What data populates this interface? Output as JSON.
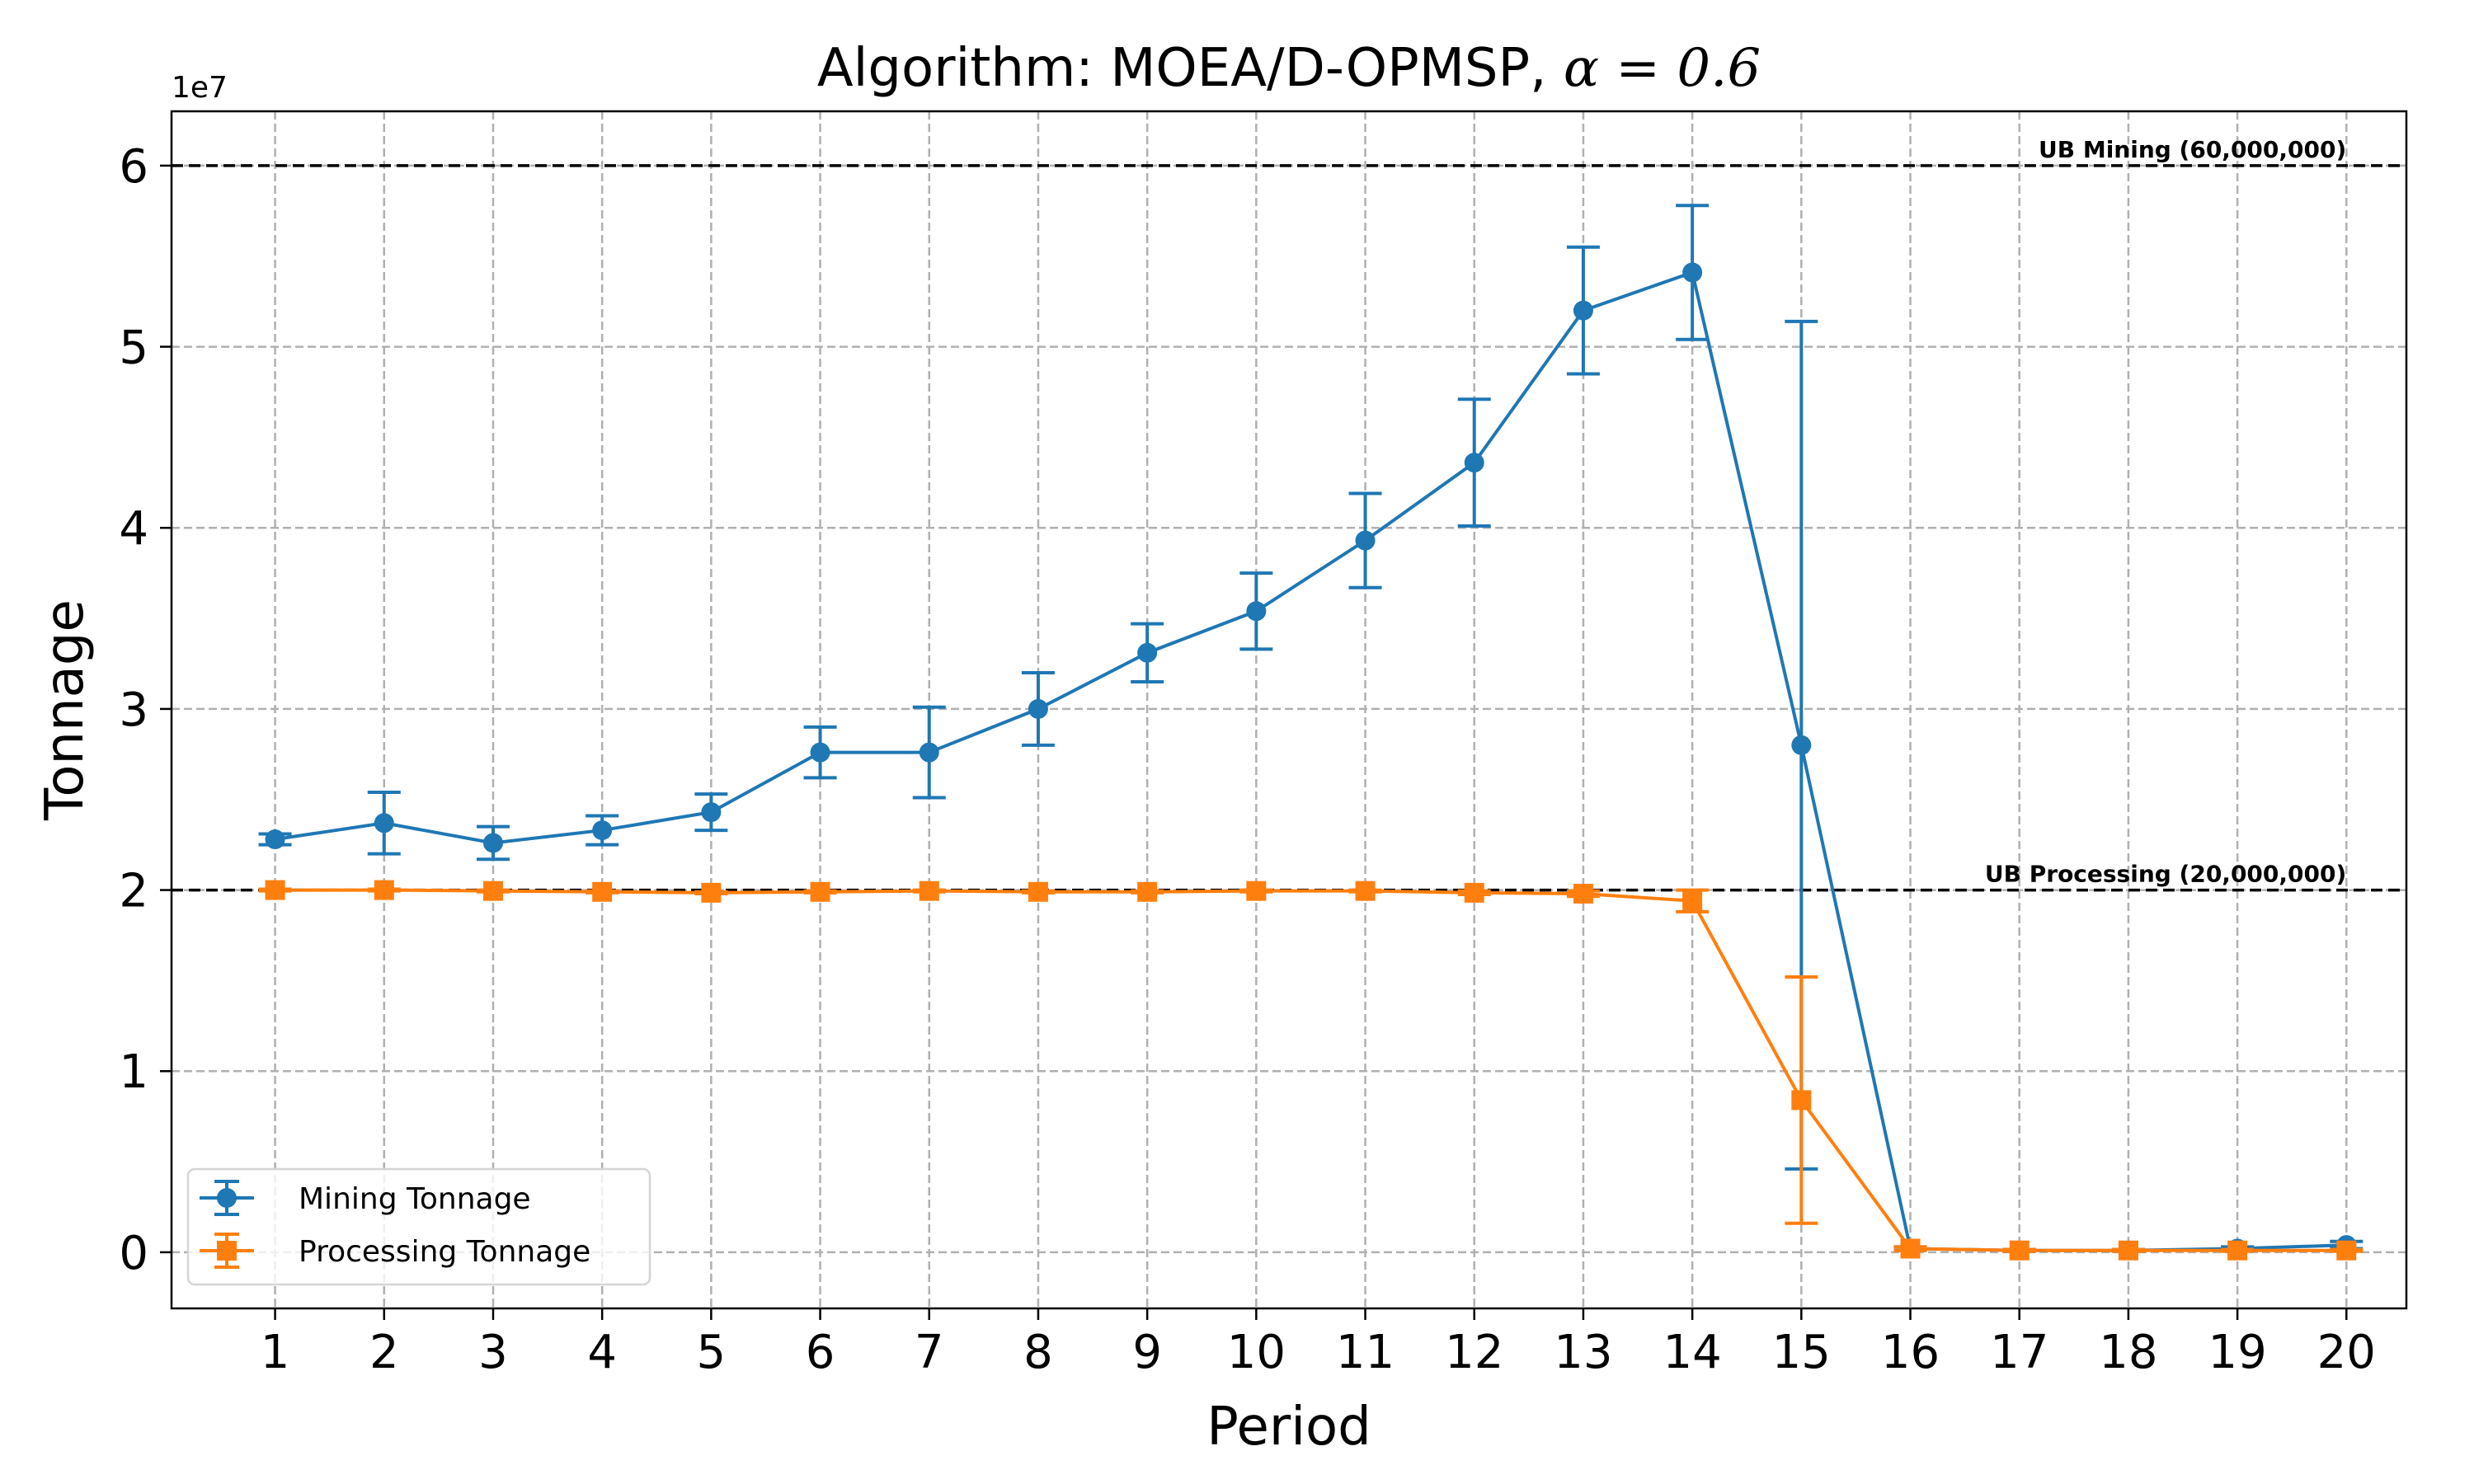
{
  "chart_data": {
    "type": "line",
    "title": "Algorithm: MOEA/D-OPMSP, α = 0.6",
    "title_prefix": "Algorithm: MOEA/D-OPMSP, ",
    "title_math": "α = 0.6",
    "xlabel": "Period",
    "ylabel": "Tonnage",
    "y_offset_label": "1e7",
    "x": [
      1,
      2,
      3,
      4,
      5,
      6,
      7,
      8,
      9,
      10,
      11,
      12,
      13,
      14,
      15,
      16,
      17,
      18,
      19,
      20
    ],
    "xlim": [
      0.05,
      20.55
    ],
    "ylim": [
      -3100000,
      63000000
    ],
    "yticks": [
      0,
      10000000,
      20000000,
      30000000,
      40000000,
      50000000,
      60000000
    ],
    "ytick_labels": [
      "0",
      "1",
      "2",
      "3",
      "4",
      "5",
      "6"
    ],
    "grid": true,
    "legend_position": "lower-left",
    "series": [
      {
        "name": "Mining Tonnage",
        "color": "#1f77b4",
        "marker": "circle",
        "values": [
          22800000,
          23700000,
          22600000,
          23300000,
          24300000,
          27600000,
          27600000,
          30000000,
          33100000,
          35400000,
          39300000,
          43600000,
          52000000,
          54100000,
          28000000,
          200000,
          100000,
          100000,
          200000,
          400000
        ],
        "errors": [
          300000,
          1700000,
          900000,
          800000,
          1000000,
          1400000,
          2500000,
          2000000,
          1600000,
          2100000,
          2600000,
          3500000,
          3500000,
          3700000,
          23400000,
          100000,
          50000,
          50000,
          100000,
          200000
        ]
      },
      {
        "name": "Processing Tonnage",
        "color": "#ff7f0e",
        "marker": "square",
        "values": [
          20000000,
          20000000,
          19950000,
          19900000,
          19850000,
          19900000,
          19950000,
          19900000,
          19900000,
          19950000,
          19950000,
          19850000,
          19800000,
          19400000,
          8400000,
          200000,
          100000,
          100000,
          100000,
          100000
        ],
        "errors": [
          50000,
          50000,
          50000,
          50000,
          50000,
          50000,
          50000,
          50000,
          50000,
          50000,
          50000,
          100000,
          150000,
          600000,
          6800000,
          100000,
          50000,
          50000,
          50000,
          50000
        ]
      }
    ],
    "reference_lines": [
      {
        "label": "UB Mining (60,000,000)",
        "value": 60000000,
        "color": "#000000"
      },
      {
        "label": "UB Processing (20,000,000)",
        "value": 20000000,
        "color": "#000000"
      }
    ]
  }
}
